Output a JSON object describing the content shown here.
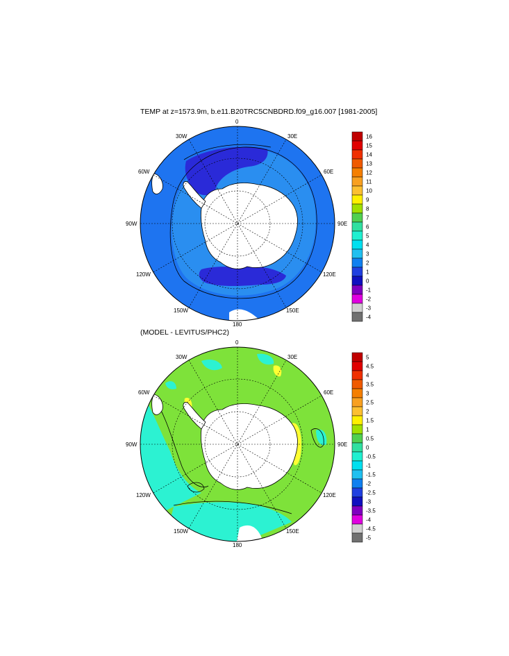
{
  "panels": [
    {
      "title": "TEMP at z=1573.9m, b.e11.B20TRC5CNBDRD.f09_g16.007 [1981-2005]",
      "lon_labels": {
        "l0": "0",
        "l30e": "30E",
        "l60e": "60E",
        "l90e": "90E",
        "l120e": "120E",
        "l150e": "150E",
        "l180": "180",
        "l150w": "150W",
        "l120w": "120W",
        "l90w": "90W",
        "l60w": "60W",
        "l30w": "30W"
      },
      "colorbar": {
        "labels": [
          "16",
          "15",
          "14",
          "13",
          "12",
          "11",
          "10",
          "9",
          "8",
          "7",
          "6",
          "5",
          "4",
          "3",
          "2",
          "1",
          "0",
          "-1",
          "-2",
          "-3",
          "-4"
        ],
        "colors": [
          "#c00000",
          "#e00000",
          "#f03000",
          "#f05a00",
          "#f57f00",
          "#f8a020",
          "#fcc030",
          "#fff000",
          "#a0e000",
          "#50d050",
          "#30e0a0",
          "#20f0d0",
          "#00e0f0",
          "#20c0f0",
          "#1080f0",
          "#2040e0",
          "#1010c0",
          "#8000c0",
          "#e000e0",
          "#d0d0d0",
          "#707070"
        ]
      }
    },
    {
      "title": "(MODEL - LEVITUS/PHC2)",
      "lon_labels": {
        "l0": "0",
        "l30e": "30E",
        "l60e": "60E",
        "l90e": "90E",
        "l120e": "120E",
        "l150e": "150E",
        "l180": "180",
        "l150w": "150W",
        "l120w": "120W",
        "l90w": "90W",
        "l60w": "60W",
        "l30w": "30W"
      },
      "colorbar": {
        "labels": [
          "5",
          "4.5",
          "4",
          "3.5",
          "3",
          "2.5",
          "2",
          "1.5",
          "1",
          "0.5",
          "0",
          "-0.5",
          "-1",
          "-1.5",
          "-2",
          "-2.5",
          "-3",
          "-3.5",
          "-4",
          "-4.5",
          "-5"
        ],
        "colors": [
          "#c00000",
          "#e00000",
          "#f03000",
          "#f05a00",
          "#f57f00",
          "#f8a020",
          "#fcc030",
          "#fff000",
          "#a0e000",
          "#50d050",
          "#30e0a0",
          "#20f0d0",
          "#00e0f0",
          "#20c0f0",
          "#1080f0",
          "#2040e0",
          "#1010c0",
          "#8000c0",
          "#e000e0",
          "#d0d0d0",
          "#707070"
        ]
      }
    }
  ],
  "colors": {
    "temp_dark_blue": "#2a2ad8",
    "temp_blue": "#1e74f0",
    "temp_mid_blue": "#2a8ef0",
    "diff_green": "#7ee23a",
    "diff_cyan": "#2cf2d2",
    "diff_yellow": "#ffff33",
    "land": "#ffffff"
  }
}
